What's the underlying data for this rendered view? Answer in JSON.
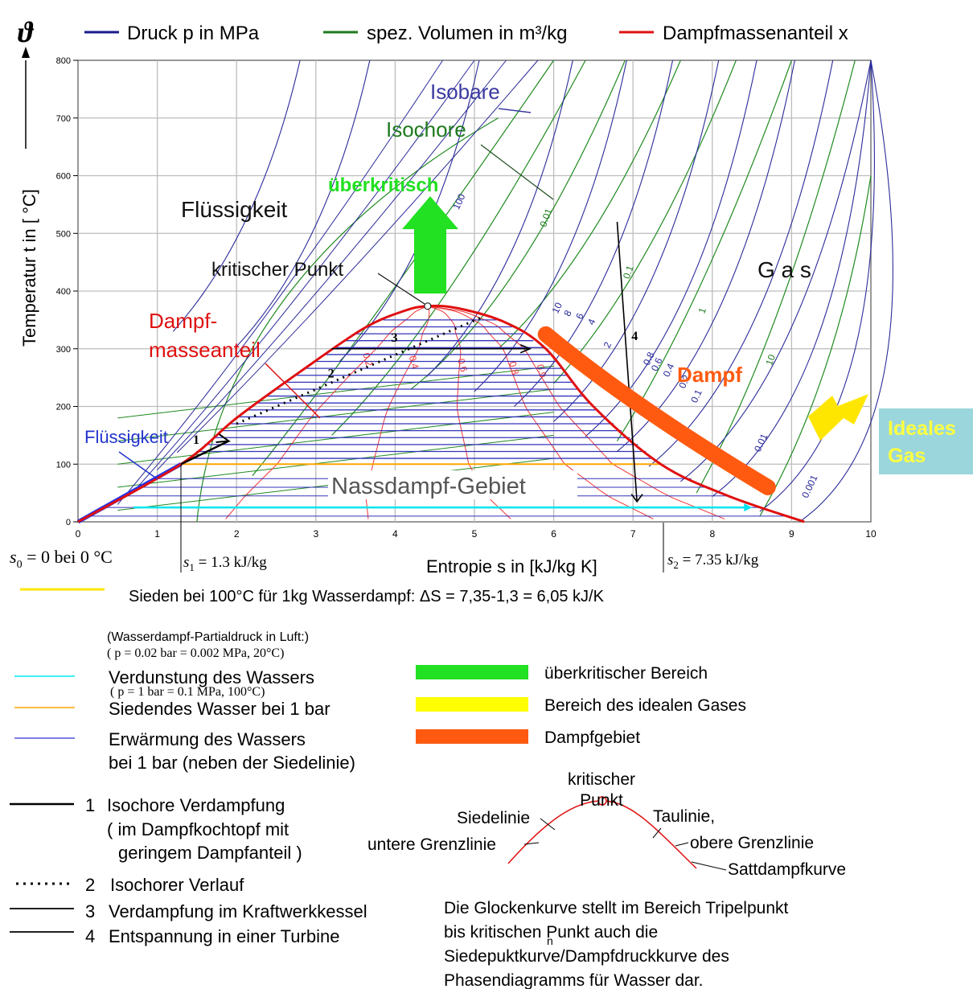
{
  "header_legend": [
    {
      "label": "Druck p in MPa",
      "color": "#1a1a8c"
    },
    {
      "label": "spez. Volumen in m³/kg",
      "color": "#1f7a1f"
    },
    {
      "label": "Dampfmassenanteil  x",
      "color": "#e01010"
    }
  ],
  "chart_data": {
    "type": "line",
    "ylabel": "Temperatur t in [ °C]",
    "ysymbol": "ϑ",
    "xlabel": "Entropie s in [kJ/kg K]",
    "xlim": [
      0,
      10
    ],
    "ylim": [
      0,
      800
    ],
    "x_ticks": [
      "0",
      "1",
      "2",
      "3",
      "4",
      "5",
      "6",
      "7",
      "8",
      "9",
      "10"
    ],
    "y_ticks": [
      "0",
      "100",
      "200",
      "300",
      "400",
      "500",
      "600",
      "700",
      "800"
    ],
    "grid": true,
    "saturation_dome": {
      "s": [
        0,
        1.3,
        2.0,
        2.8,
        3.6,
        4.1,
        4.41,
        4.8,
        5.4,
        5.9,
        6.5,
        7.35,
        8.2,
        9.16
      ],
      "t": [
        0,
        100,
        180,
        260,
        335,
        365,
        373.9,
        370,
        345,
        300,
        200,
        100,
        45,
        0
      ]
    },
    "quality_labels": [
      "0.2",
      "0.4",
      "0.6",
      "0.8",
      "0.9"
    ],
    "isobar_labels": [
      "100",
      "10",
      "8",
      "6",
      "4",
      "2",
      "0.8",
      "0.6",
      "0.4",
      "0.2",
      "0.1",
      "0.01",
      "0.001"
    ],
    "isochore_labels": [
      "0.01",
      "0.1",
      "1",
      "10"
    ],
    "annotations": {
      "isobare": "Isobare",
      "isochore": "Isochore",
      "ueberkritisch": "überkritisch",
      "fluessigkeit_top": "Flüssigkeit",
      "kritischer_punkt": "kritischer Punkt",
      "gas": "G a s",
      "dampf_masse_1": "Dampf-",
      "dampf_masse_2": "masseanteil",
      "dampf": "Dampf",
      "ideales_1": "Ideales",
      "ideales_2": "Gas",
      "fluessigkeit_left": "Flüssigkeit",
      "nassdampf": "Nassdampf-Gebiet",
      "path_1": "1",
      "path_2": "2",
      "path_3": "3",
      "path_4": "4"
    },
    "s_labels": {
      "s0": "s",
      "s0_sub": "0",
      "s0_text": " = 0 bei 0 °C",
      "s1": "s",
      "s1_sub": "1",
      "s1_text": " = 1.3 kJ/kg",
      "s2": "s",
      "s2_sub": "2",
      "s2_text": " = 7.35 kJ/kg"
    }
  },
  "boiling_note": "Sieden bei 100°C  für 1kg Wasserdampf:   ΔS = 7,35-1,3 = 6,05 kJ/K",
  "partial_pressure": {
    "title": "(Wasserdampf-Partialdruck in Luft:)",
    "cond_a": "( p = 0.02 bar = 0.002 MPa, 20°C)",
    "cond_b": "( p = 1 bar = 0.1 MPa, 100°C)"
  },
  "legend_left": [
    {
      "label": "Verdunstung des Wassers",
      "color": "#00e5ee"
    },
    {
      "label": "Siedendes Wasser bei 1 bar",
      "color": "#ffa500"
    },
    {
      "label": "Erwärmung des Wassers",
      "label2": "bei 1 bar (neben der Siedelinie)",
      "color": "#5555dd"
    }
  ],
  "legend_right": [
    {
      "label": "überkritischer Bereich",
      "color": "#22e022"
    },
    {
      "label": "Bereich des idealen Gases",
      "color": "#ffff00"
    },
    {
      "label": "Dampfgebiet",
      "color": "#ff5a10"
    }
  ],
  "legend_paths": [
    {
      "num": "1",
      "label": "Isochore Verdampfung",
      "label2": "( im Dampfkochtopf mit",
      "label3": "geringem Dampfanteil )"
    },
    {
      "num": "2",
      "label": "Isochorer Verlauf"
    },
    {
      "num": "3",
      "label": "Verdampfung im Kraftwerkkessel"
    },
    {
      "num": "4",
      "label": "Entspannung in einer Turbine"
    }
  ],
  "dome_diagram": {
    "kritischer": "kritischer",
    "punkt": "Punkt",
    "siedelinie": "Siedelinie",
    "untere": "untere  Grenzlinie",
    "taulinie": "Taulinie,",
    "obere": "obere Grenzlinie",
    "sattdampf": "Sattdampfkurve"
  },
  "note_lines": [
    "Die Glockenkurve stellt im Bereich Tripelpunkt",
    "bis kritischen Punkt auch die",
    "Siedepuktkurve/Dampfdruckkurve des",
    "Phasendiagramms für Wasser dar."
  ],
  "note_n": "n"
}
